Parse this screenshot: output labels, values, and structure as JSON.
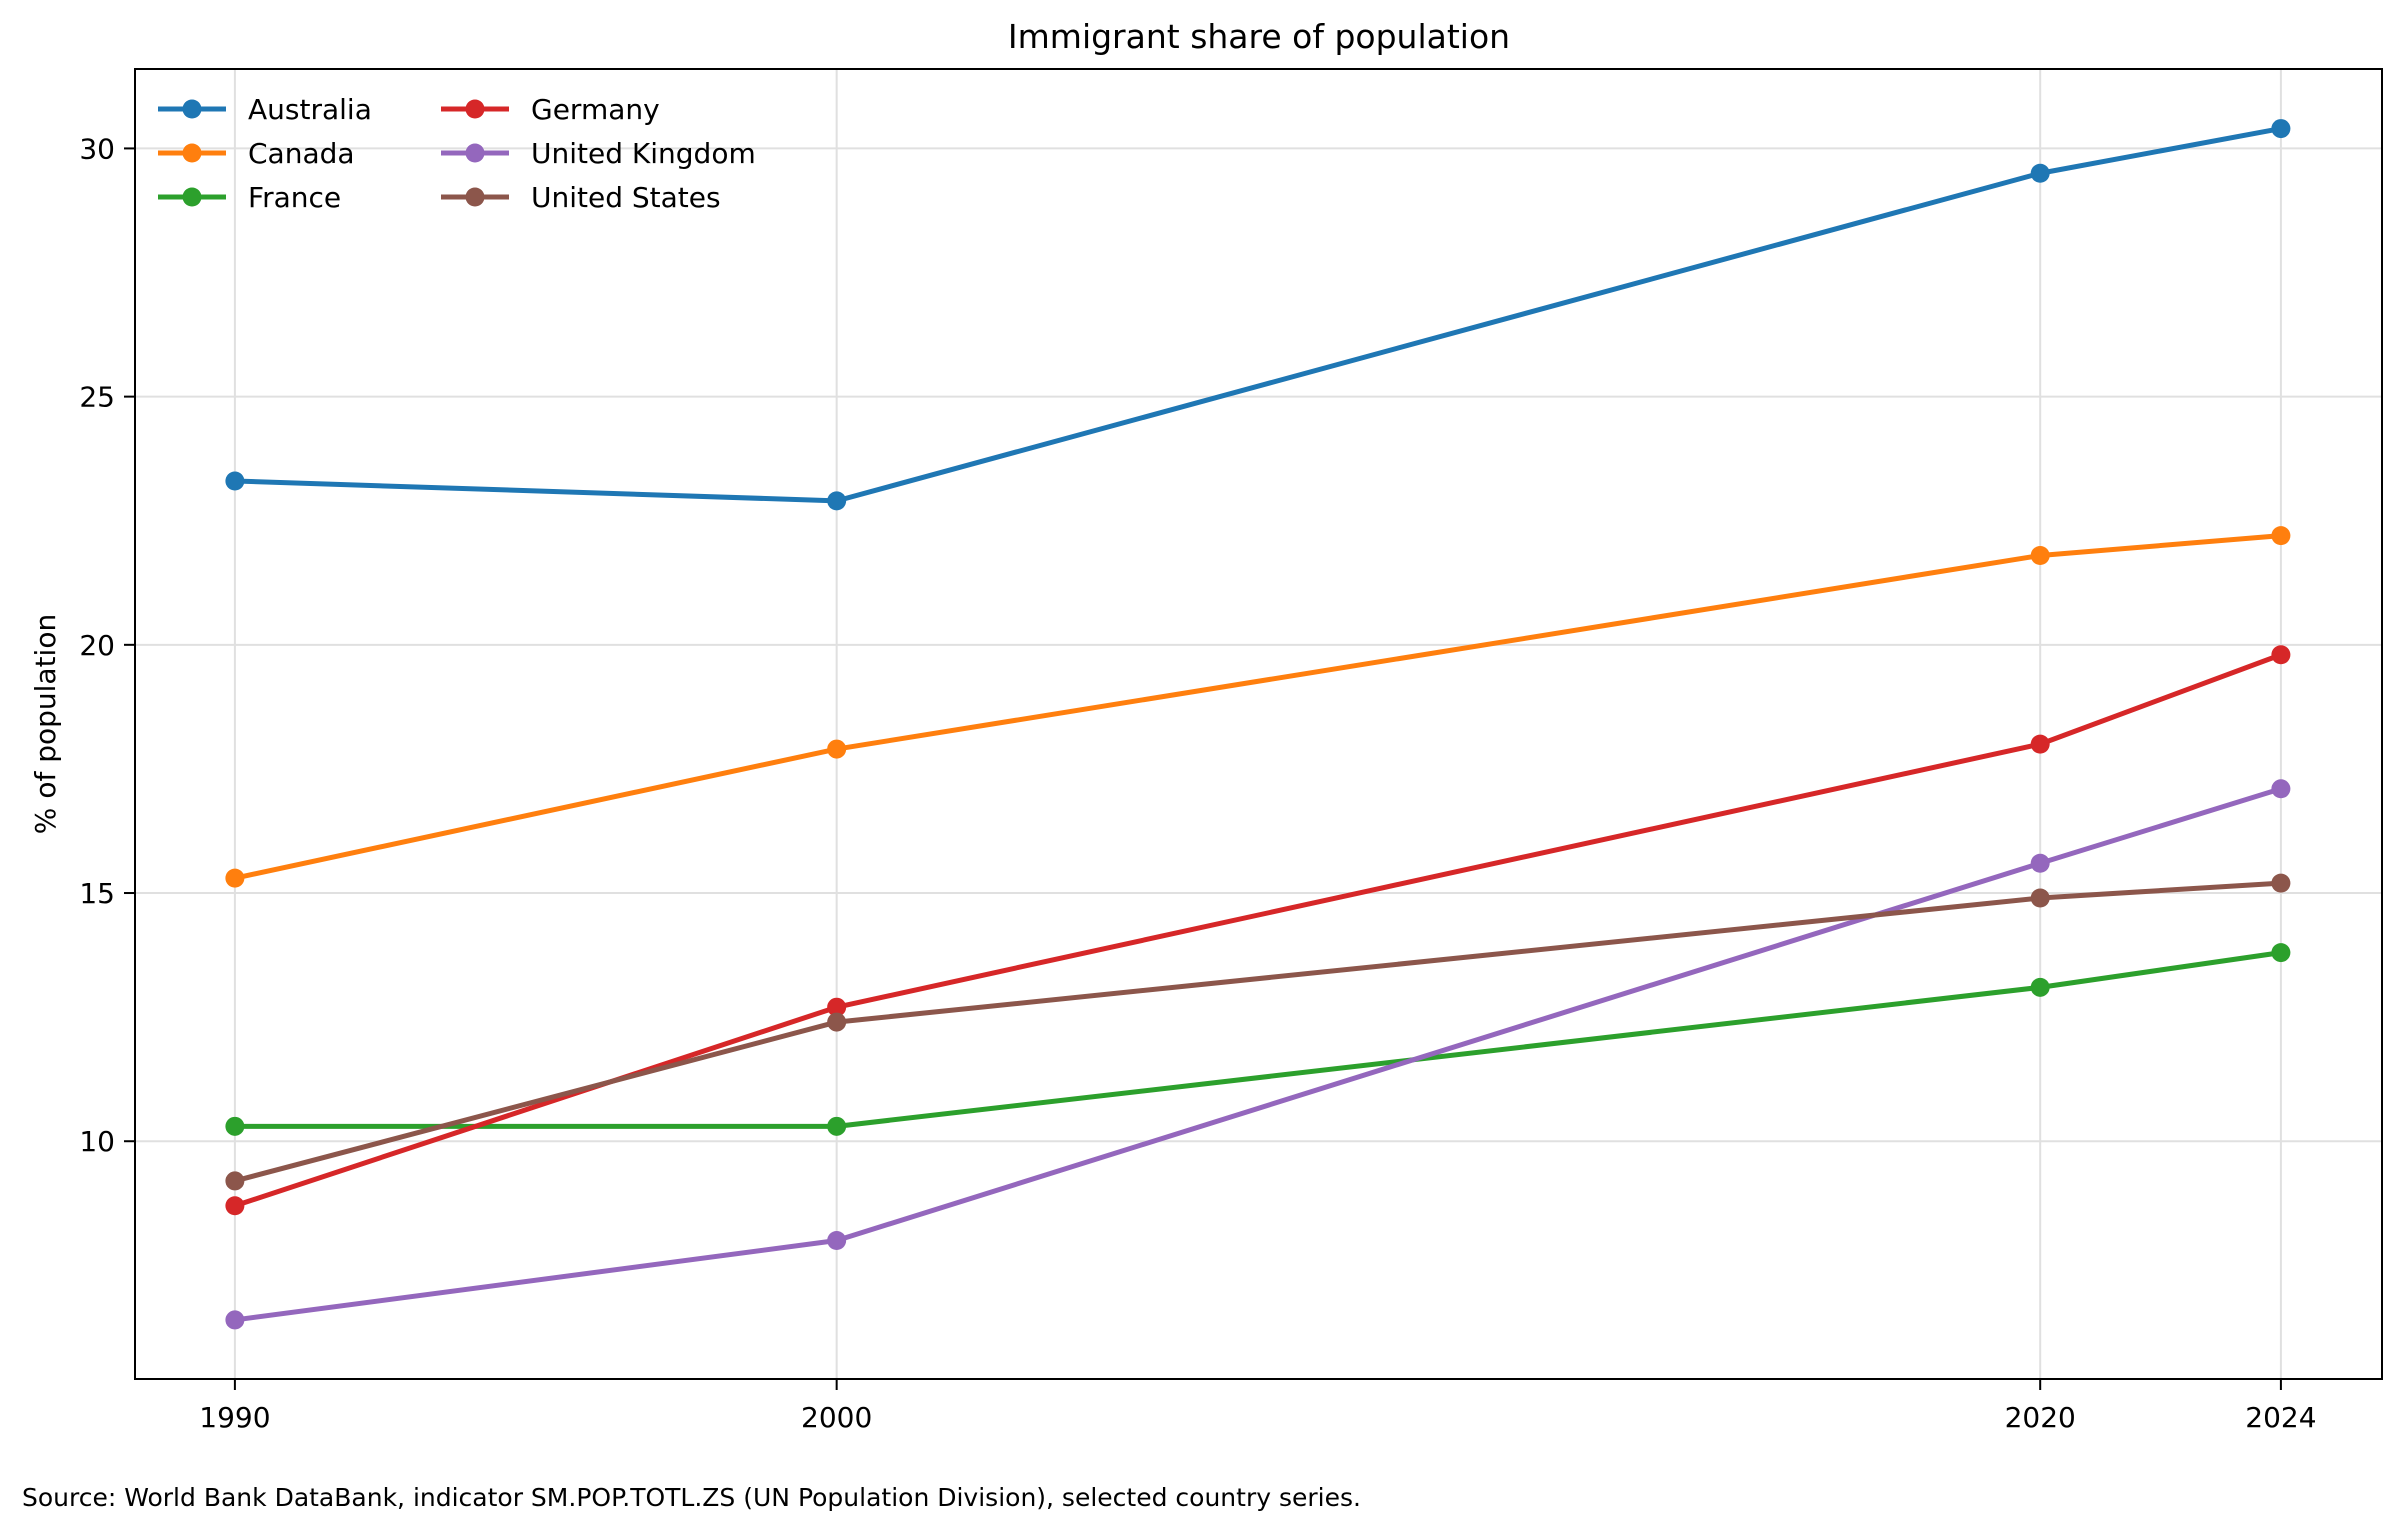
{
  "chart_data": {
    "type": "line",
    "title": "Immigrant share of population",
    "xlabel": "",
    "ylabel": "% of population",
    "x": [
      1990,
      2000,
      2020,
      2024
    ],
    "xticks": [
      "1990",
      "2000",
      "2020",
      "2024"
    ],
    "yticks": [
      "10",
      "15",
      "20",
      "25",
      "30"
    ],
    "xlim": [
      1988.34,
      2025.68
    ],
    "ylim": [
      5.21,
      31.6
    ],
    "grid": true,
    "legend_position": "top-left",
    "series": [
      {
        "name": "Australia",
        "color": "#1f77b4",
        "values": [
          23.3,
          22.9,
          29.5,
          30.4
        ]
      },
      {
        "name": "Canada",
        "color": "#ff7f0e",
        "values": [
          15.3,
          17.9,
          21.8,
          22.2
        ]
      },
      {
        "name": "France",
        "color": "#2ca02c",
        "values": [
          10.3,
          10.3,
          13.1,
          13.8
        ]
      },
      {
        "name": "Germany",
        "color": "#d62728",
        "values": [
          8.7,
          12.7,
          18.0,
          19.8
        ]
      },
      {
        "name": "United Kingdom",
        "color": "#9467bd",
        "values": [
          6.4,
          8.0,
          15.6,
          17.1
        ]
      },
      {
        "name": "United States",
        "color": "#8c564b",
        "values": [
          9.2,
          12.4,
          14.9,
          15.2
        ]
      }
    ],
    "source_note": "Source: World Bank DataBank, indicator SM.POP.TOTL.ZS (UN Population Division), selected country series."
  }
}
